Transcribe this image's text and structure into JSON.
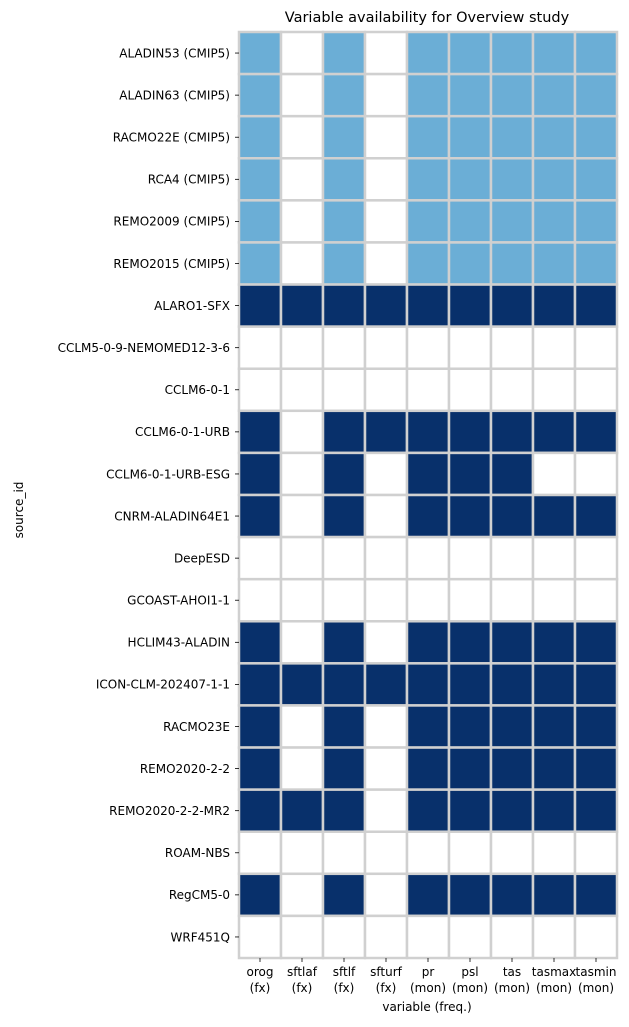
{
  "chart_data": {
    "type": "heatmap",
    "title": "Variable availability for Overview study",
    "xlabel": "variable (freq.)",
    "ylabel": "source_id",
    "x_ticks": [
      {
        "name": "orog",
        "freq": "(fx)"
      },
      {
        "name": "sftlaf",
        "freq": "(fx)"
      },
      {
        "name": "sftlf",
        "freq": "(fx)"
      },
      {
        "name": "sfturf",
        "freq": "(fx)"
      },
      {
        "name": "pr",
        "freq": "(mon)"
      },
      {
        "name": "psl",
        "freq": "(mon)"
      },
      {
        "name": "tas",
        "freq": "(mon)"
      },
      {
        "name": "tasmax",
        "freq": "(mon)"
      },
      {
        "name": "tasmin",
        "freq": "(mon)"
      }
    ],
    "rows": [
      {
        "label": "ALADIN53 (CMIP5)",
        "values": [
          1,
          0,
          1,
          0,
          1,
          1,
          1,
          1,
          1
        ]
      },
      {
        "label": "ALADIN63 (CMIP5)",
        "values": [
          1,
          0,
          1,
          0,
          1,
          1,
          1,
          1,
          1
        ]
      },
      {
        "label": "RACMO22E (CMIP5)",
        "values": [
          1,
          0,
          1,
          0,
          1,
          1,
          1,
          1,
          1
        ]
      },
      {
        "label": "RCA4 (CMIP5)",
        "values": [
          1,
          0,
          1,
          0,
          1,
          1,
          1,
          1,
          1
        ]
      },
      {
        "label": "REMO2009 (CMIP5)",
        "values": [
          1,
          0,
          1,
          0,
          1,
          1,
          1,
          1,
          1
        ]
      },
      {
        "label": "REMO2015 (CMIP5)",
        "values": [
          1,
          0,
          1,
          0,
          1,
          1,
          1,
          1,
          1
        ]
      },
      {
        "label": "ALARO1-SFX",
        "values": [
          2,
          2,
          2,
          2,
          2,
          2,
          2,
          2,
          2
        ]
      },
      {
        "label": "CCLM5-0-9-NEMOMED12-3-6",
        "values": [
          0,
          0,
          0,
          0,
          0,
          0,
          0,
          0,
          0
        ]
      },
      {
        "label": "CCLM6-0-1",
        "values": [
          0,
          0,
          0,
          0,
          0,
          0,
          0,
          0,
          0
        ]
      },
      {
        "label": "CCLM6-0-1-URB",
        "values": [
          2,
          0,
          2,
          2,
          2,
          2,
          2,
          2,
          2
        ]
      },
      {
        "label": "CCLM6-0-1-URB-ESG",
        "values": [
          2,
          0,
          2,
          0,
          2,
          2,
          2,
          0,
          0
        ]
      },
      {
        "label": "CNRM-ALADIN64E1",
        "values": [
          2,
          0,
          2,
          0,
          2,
          2,
          2,
          2,
          2
        ]
      },
      {
        "label": "DeepESD",
        "values": [
          0,
          0,
          0,
          0,
          0,
          0,
          0,
          0,
          0
        ]
      },
      {
        "label": "GCOAST-AHOI1-1",
        "values": [
          0,
          0,
          0,
          0,
          0,
          0,
          0,
          0,
          0
        ]
      },
      {
        "label": "HCLIM43-ALADIN",
        "values": [
          2,
          0,
          2,
          0,
          2,
          2,
          2,
          2,
          2
        ]
      },
      {
        "label": "ICON-CLM-202407-1-1",
        "values": [
          2,
          2,
          2,
          2,
          2,
          2,
          2,
          2,
          2
        ]
      },
      {
        "label": "RACMO23E",
        "values": [
          2,
          0,
          2,
          0,
          2,
          2,
          2,
          2,
          2
        ]
      },
      {
        "label": "REMO2020-2-2",
        "values": [
          2,
          0,
          2,
          0,
          2,
          2,
          2,
          2,
          2
        ]
      },
      {
        "label": "REMO2020-2-2-MR2",
        "values": [
          2,
          2,
          2,
          0,
          2,
          2,
          2,
          2,
          2
        ]
      },
      {
        "label": "ROAM-NBS",
        "values": [
          0,
          0,
          0,
          0,
          0,
          0,
          0,
          0,
          0
        ]
      },
      {
        "label": "RegCM5-0",
        "values": [
          2,
          0,
          2,
          0,
          2,
          2,
          2,
          2,
          2
        ]
      },
      {
        "label": "WRF451Q",
        "values": [
          0,
          0,
          0,
          0,
          0,
          0,
          0,
          0,
          0
        ]
      }
    ],
    "value_colors": {
      "0": "#ffffff",
      "1": "#6baed6",
      "2": "#08306b"
    },
    "grid_color": "#d0d0d0",
    "legend": "none"
  }
}
